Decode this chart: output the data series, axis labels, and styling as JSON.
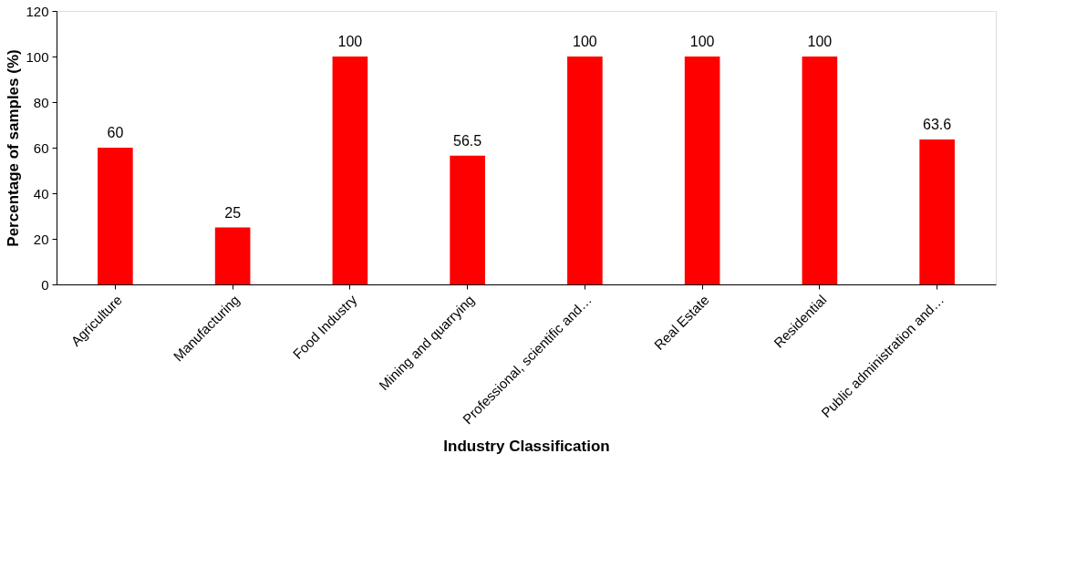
{
  "chart_data": {
    "type": "bar",
    "xlabel": "Industry Classification",
    "ylabel": "Percentage of samples (%)",
    "categories": [
      "Agriculture",
      "Manufacturing",
      "Food Industry",
      "Mining and quarrying",
      "Professional, scientific and…",
      "Real Estate",
      "Residential",
      "Public administration and…"
    ],
    "values": [
      60,
      25,
      100,
      56.5,
      100,
      100,
      100,
      63.6
    ],
    "color": "#ff0000",
    "ylim": [
      0,
      120
    ],
    "yticks": [
      0,
      20,
      40,
      60,
      80,
      100,
      120
    ],
    "grid": false,
    "data_labels": true
  }
}
